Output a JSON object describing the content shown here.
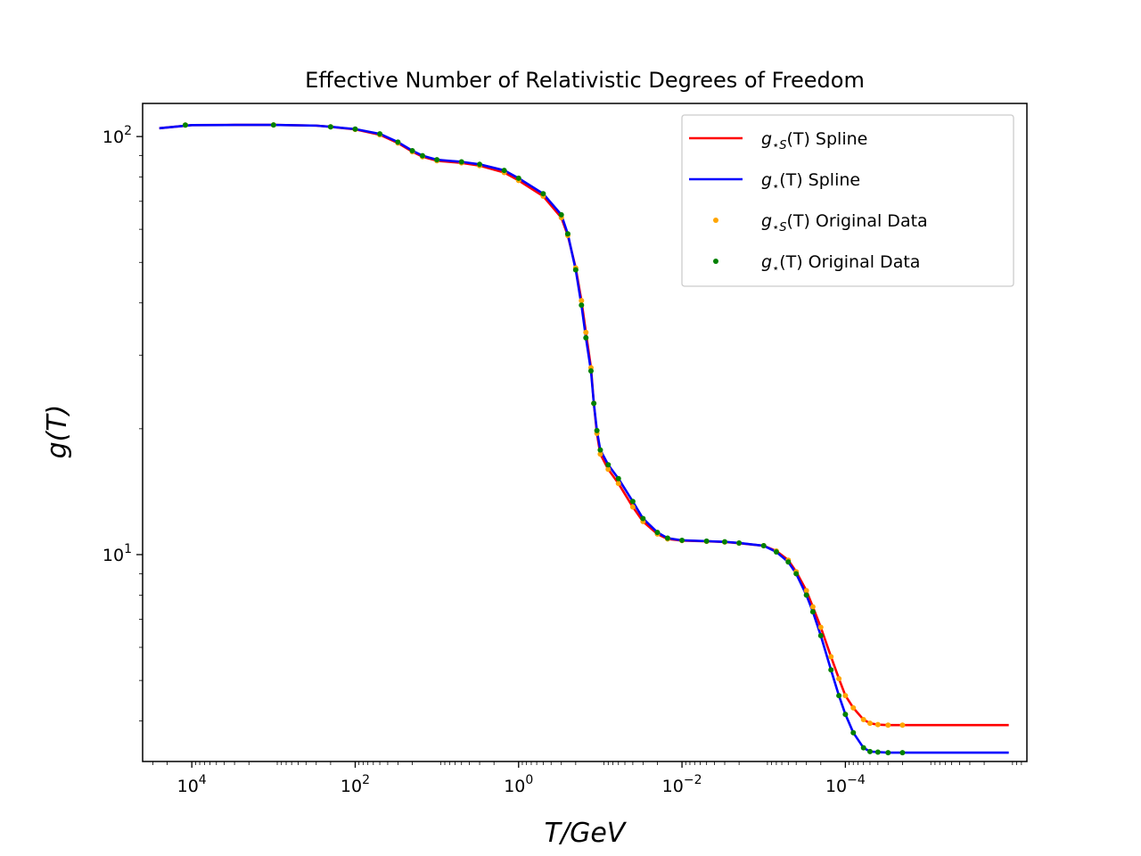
{
  "chart_data": {
    "type": "line",
    "title": "Effective Number of Relativistic Degrees of Freedom",
    "xlabel": "T/GeV",
    "ylabel": "g(T)",
    "xscale": "log",
    "yscale": "log",
    "x_inverted": true,
    "xlim": [
      40000,
      6e-07
    ],
    "ylim": [
      3.2,
      120
    ],
    "x_ticks": [
      {
        "value": 10000,
        "base": "10",
        "exp": "4"
      },
      {
        "value": 100,
        "base": "10",
        "exp": "2"
      },
      {
        "value": 1,
        "base": "10",
        "exp": "0"
      },
      {
        "value": 0.01,
        "base": "10",
        "exp": "−2"
      },
      {
        "value": 0.0001,
        "base": "10",
        "exp": "−4"
      }
    ],
    "y_ticks": [
      {
        "value": 10,
        "base": "10",
        "exp": "1"
      },
      {
        "value": 100,
        "base": "10",
        "exp": "2"
      }
    ],
    "grid": false,
    "legend": {
      "position": "top-right",
      "entries": [
        {
          "style": "line",
          "color": "#ff0000",
          "main": "g",
          "sub": "⋆S",
          "rest": "(T) Spline"
        },
        {
          "style": "line",
          "color": "#0000ff",
          "main": "g",
          "sub": "⋆",
          "rest": "(T) Spline"
        },
        {
          "style": "dot",
          "color": "#ffa500",
          "main": "g",
          "sub": "⋆S",
          "rest": "(T) Original Data"
        },
        {
          "style": "dot",
          "color": "#008000",
          "main": "g",
          "sub": "⋆",
          "rest": "(T) Original Data"
        }
      ]
    },
    "series": [
      {
        "name": "g⋆S(T) Spline",
        "style": "line",
        "color": "#ff0000",
        "x": [
          25000,
          10000,
          3000,
          1000,
          300,
          200,
          100,
          50,
          30,
          20,
          15,
          10,
          5,
          3,
          1.5,
          1,
          0.5,
          0.3,
          0.25,
          0.2,
          0.17,
          0.15,
          0.13,
          0.12,
          0.11,
          0.1,
          0.08,
          0.06,
          0.04,
          0.03,
          0.02,
          0.015,
          0.01,
          0.005,
          0.003,
          0.002,
          0.001,
          0.0007,
          0.0005,
          0.0004,
          0.0003,
          0.00025,
          0.0002,
          0.00015,
          0.00012,
          0.0001,
          8e-05,
          6e-05,
          5e-05,
          4e-05,
          3e-05,
          2e-05,
          1e-05,
          5e-06,
          1e-06
        ],
        "y": [
          104.7,
          106.5,
          106.6,
          106.6,
          106.2,
          105.5,
          104.0,
          101.0,
          96.5,
          92.0,
          89.5,
          87.5,
          86.5,
          85.2,
          82.0,
          78.5,
          72.0,
          64.0,
          58.0,
          48.5,
          40.5,
          34.0,
          28.0,
          23.0,
          19.5,
          17.4,
          16.0,
          14.8,
          13.0,
          12.0,
          11.2,
          10.9,
          10.8,
          10.76,
          10.72,
          10.65,
          10.5,
          10.2,
          9.7,
          9.1,
          8.2,
          7.5,
          6.7,
          5.7,
          5.05,
          4.6,
          4.3,
          4.03,
          3.95,
          3.92,
          3.91,
          3.91,
          3.91,
          3.91,
          3.91
        ]
      },
      {
        "name": "g⋆(T) Spline",
        "style": "line",
        "color": "#0000ff",
        "x": [
          25000,
          10000,
          3000,
          1000,
          300,
          200,
          100,
          50,
          30,
          20,
          15,
          10,
          5,
          3,
          1.5,
          1,
          0.5,
          0.3,
          0.25,
          0.2,
          0.17,
          0.15,
          0.13,
          0.12,
          0.11,
          0.1,
          0.08,
          0.06,
          0.04,
          0.03,
          0.02,
          0.015,
          0.01,
          0.005,
          0.003,
          0.002,
          0.001,
          0.0007,
          0.0005,
          0.0004,
          0.0003,
          0.00025,
          0.0002,
          0.00015,
          0.00012,
          0.0001,
          8e-05,
          6e-05,
          5e-05,
          4e-05,
          3e-05,
          2e-05,
          1e-05,
          5e-06,
          1e-06
        ],
        "y": [
          104.7,
          106.5,
          106.6,
          106.6,
          106.2,
          105.5,
          104.2,
          101.5,
          97.0,
          92.5,
          90.0,
          88.0,
          87.0,
          85.8,
          83.0,
          79.5,
          73.0,
          65.0,
          58.5,
          48.0,
          39.5,
          33.0,
          27.5,
          23.0,
          19.8,
          17.8,
          16.4,
          15.2,
          13.4,
          12.2,
          11.3,
          10.95,
          10.82,
          10.77,
          10.73,
          10.66,
          10.5,
          10.15,
          9.6,
          9.0,
          8.0,
          7.3,
          6.4,
          5.3,
          4.6,
          4.15,
          3.75,
          3.45,
          3.38,
          3.37,
          3.36,
          3.36,
          3.36,
          3.36,
          3.36
        ]
      },
      {
        "name": "g⋆S(T) Original Data",
        "style": "scatter",
        "color": "#ffa500",
        "x": [
          12000,
          1000,
          200,
          100,
          50,
          30,
          20,
          15,
          10,
          5,
          3,
          1.5,
          1,
          0.5,
          0.3,
          0.25,
          0.2,
          0.17,
          0.15,
          0.13,
          0.12,
          0.11,
          0.1,
          0.08,
          0.06,
          0.04,
          0.03,
          0.02,
          0.015,
          0.01,
          0.005,
          0.003,
          0.002,
          0.001,
          0.0007,
          0.0005,
          0.0004,
          0.0003,
          0.00025,
          0.0002,
          0.00015,
          0.00012,
          0.0001,
          8e-05,
          6e-05,
          5e-05,
          4e-05,
          3e-05,
          2e-05
        ],
        "y": [
          106.5,
          106.6,
          105.5,
          104.0,
          101.0,
          96.5,
          92.0,
          89.5,
          87.5,
          86.5,
          85.2,
          82.0,
          78.5,
          72.0,
          64.0,
          58.0,
          48.5,
          40.5,
          34.0,
          28.0,
          23.0,
          19.5,
          17.4,
          16.0,
          14.8,
          13.0,
          12.0,
          11.2,
          10.9,
          10.8,
          10.76,
          10.72,
          10.65,
          10.5,
          10.2,
          9.7,
          9.1,
          8.2,
          7.5,
          6.7,
          5.7,
          5.05,
          4.6,
          4.3,
          4.03,
          3.95,
          3.92,
          3.91,
          3.91
        ]
      },
      {
        "name": "g⋆(T) Original Data",
        "style": "scatter",
        "color": "#008000",
        "x": [
          12000,
          1000,
          200,
          100,
          50,
          30,
          20,
          15,
          10,
          5,
          3,
          1.5,
          1,
          0.5,
          0.3,
          0.25,
          0.2,
          0.17,
          0.15,
          0.13,
          0.12,
          0.11,
          0.1,
          0.08,
          0.06,
          0.04,
          0.03,
          0.02,
          0.015,
          0.01,
          0.005,
          0.003,
          0.002,
          0.001,
          0.0007,
          0.0005,
          0.0004,
          0.0003,
          0.00025,
          0.0002,
          0.00015,
          0.00012,
          0.0001,
          8e-05,
          6e-05,
          5e-05,
          4e-05,
          3e-05,
          2e-05
        ],
        "y": [
          106.5,
          106.6,
          105.5,
          104.2,
          101.5,
          97.0,
          92.5,
          90.0,
          88.0,
          87.0,
          85.8,
          83.0,
          79.5,
          73.0,
          65.0,
          58.5,
          48.0,
          39.5,
          33.0,
          27.5,
          23.0,
          19.8,
          17.8,
          16.4,
          15.2,
          13.4,
          12.2,
          11.3,
          10.95,
          10.82,
          10.77,
          10.73,
          10.66,
          10.5,
          10.15,
          9.6,
          9.0,
          8.0,
          7.3,
          6.4,
          5.3,
          4.6,
          4.15,
          3.75,
          3.45,
          3.38,
          3.37,
          3.36,
          3.36
        ]
      }
    ]
  }
}
